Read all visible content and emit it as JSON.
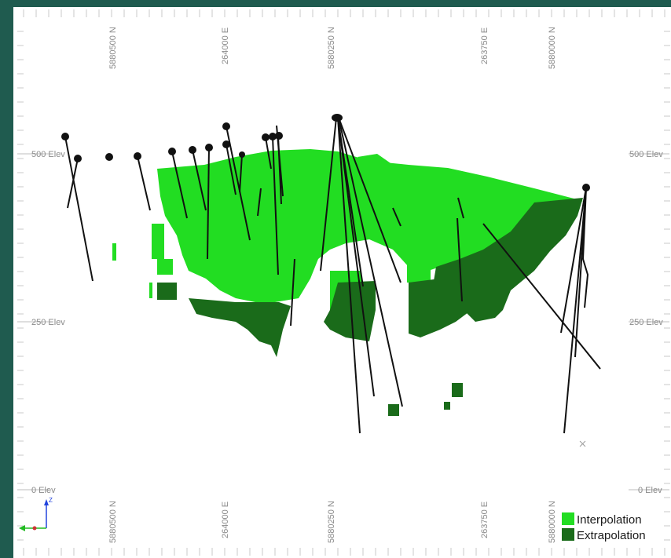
{
  "section": {
    "elevation_labels": [
      "500 Elev",
      "250 Elev",
      "0 Elev"
    ],
    "coord_labels_top": [
      "5880500 N",
      "264000 E",
      "5880250 N",
      "263750 E",
      "5880000 N"
    ],
    "coord_labels_bottom": [
      "5880500 N",
      "264000 E",
      "5880250 N",
      "263750 E",
      "5880000 N"
    ],
    "axis_marker": "Z"
  },
  "legend": {
    "items": [
      {
        "label": "Interpolation",
        "color": "#22dd22"
      },
      {
        "label": "Extrapolation",
        "color": "#1a6b1a"
      }
    ]
  },
  "colors": {
    "interpolation": "#22dd22",
    "extrapolation": "#1a6b1a",
    "drillhole": "#111111",
    "frame": "#1f5b4f"
  },
  "icons": [
    "axis-triad-icon",
    "close-x-icon"
  ]
}
